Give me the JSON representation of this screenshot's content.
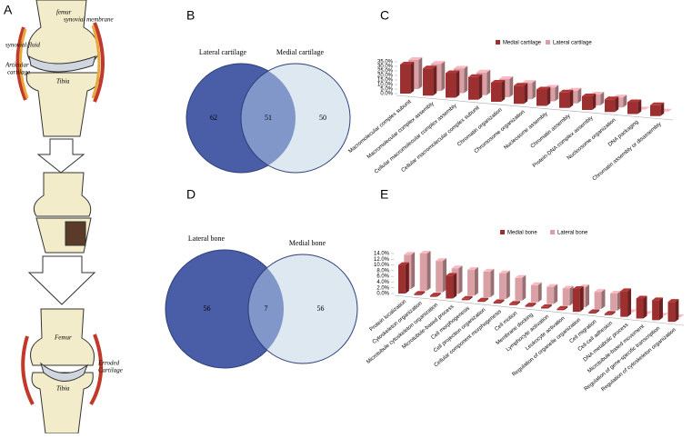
{
  "illustration": {
    "label": "A",
    "labels": [
      "femur",
      "synovial membrane",
      "synovial fluid",
      "Articular",
      "cartilage",
      "Tibia",
      "Femur",
      "Erroded",
      "Cartilage",
      "Tibia"
    ]
  },
  "chart_data": [
    {
      "type": "venn",
      "label": "B",
      "sets": [
        {
          "name": "Lateral cartilage",
          "color": "#4a5ea8",
          "value": 62
        },
        {
          "name": "Medial cartilage",
          "color": "#dde8f1",
          "value": 50
        }
      ],
      "intersection": 51,
      "intersection_color": "#8197c9"
    },
    {
      "type": "venn",
      "label": "D",
      "sets": [
        {
          "name": "Lateral bone",
          "color": "#4a5ea8",
          "value": 56
        },
        {
          "name": "Medial bone",
          "color": "#dde8f1",
          "value": 56
        }
      ],
      "intersection": 7,
      "intersection_color": "#8197c9"
    },
    {
      "type": "bar3d",
      "label": "C",
      "categories": [
        "Macromolecular complex subunit",
        "Macromolecular complex assembly",
        "Cellular macromolecular complex assembly",
        "Cellular macromolecular complex subunit",
        "Chromatin organization",
        "Chromosome organization",
        "Nucleosome assembly",
        "Chromatin assembly",
        "Protein-DNA complex assembly",
        "Nucleosome organization",
        "DNA packaging",
        "Chromatin assembly or disassembly"
      ],
      "series": [
        {
          "name": "Medial cartilage",
          "color": "#9c2f2f",
          "values": [
            32,
            30,
            27,
            25,
            21,
            20,
            18,
            17,
            15,
            14,
            13,
            12
          ]
        },
        {
          "name": "Lateral cartilage",
          "color": "#d9a0a6",
          "values": [
            32,
            30,
            27,
            25,
            20,
            18,
            15,
            14,
            12,
            11,
            0,
            0
          ]
        }
      ],
      "ylim": [
        0,
        35
      ],
      "yticks": [
        {
          "value": 0,
          "label": "0.0%"
        },
        {
          "value": 5,
          "label": "5.0%"
        },
        {
          "value": 10,
          "label": "10.0%"
        },
        {
          "value": 15,
          "label": "15.0%"
        },
        {
          "value": 20,
          "label": "20.0%"
        },
        {
          "value": 25,
          "label": "25.0%"
        },
        {
          "value": 30,
          "label": "30.0%"
        },
        {
          "value": 35,
          "label": "35.0%"
        }
      ]
    },
    {
      "type": "bar3d",
      "label": "E",
      "categories": [
        "Protein localization",
        "Cytoskeleton organization",
        "Microtubule cytoskeleton organization",
        "Microtubule-based process",
        "Cell morphogenesis",
        "Cell projection organization",
        "Cellular component morphogenesis",
        "Cell motion",
        "Membrane docking",
        "Lymphocyte activation",
        "Leukocyte activation",
        "Regulation of organelle organization",
        "Cell migration",
        "Cell-cell adhesion",
        "DNA metabolic process",
        "Microtubule-based movement",
        "Regulation of gene-specific transcription",
        "Regulation of cytoskeleton organization"
      ],
      "series": [
        {
          "name": "Medial bone",
          "color": "#9c2f2f",
          "values": [
            10,
            0.5,
            0.5,
            8,
            0.5,
            0.5,
            0.5,
            0.5,
            0.5,
            0.5,
            0.5,
            8,
            0.5,
            0.5,
            9,
            7,
            7,
            7
          ]
        },
        {
          "name": "Lateral bone",
          "color": "#d9a0a6",
          "values": [
            12,
            13,
            11,
            9,
            9,
            9,
            9,
            8,
            6,
            6,
            6,
            7,
            6,
            6,
            0,
            0,
            0,
            0
          ]
        }
      ],
      "ylim": [
        0,
        14
      ],
      "yticks": [
        {
          "value": 0,
          "label": "0.0%"
        },
        {
          "value": 2,
          "label": "2.0%"
        },
        {
          "value": 4,
          "label": "4.0%"
        },
        {
          "value": 6,
          "label": "6.0%"
        },
        {
          "value": 8,
          "label": "8.0%"
        },
        {
          "value": 10,
          "label": "10.0%"
        },
        {
          "value": 12,
          "label": "12.0%"
        },
        {
          "value": 14,
          "label": "14.0%"
        }
      ]
    }
  ]
}
